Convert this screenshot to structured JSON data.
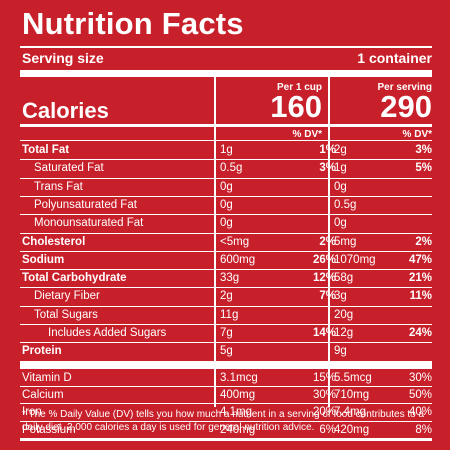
{
  "title": "Nutrition Facts",
  "serving": {
    "label": "Serving size",
    "value": "1 container"
  },
  "calories_label": "Calories",
  "columns": [
    {
      "header": "Per 1 cup",
      "calories": "160",
      "dv_header": "% DV*"
    },
    {
      "header": "Per serving",
      "calories": "290",
      "dv_header": "% DV*"
    }
  ],
  "rows": [
    {
      "name": "Total Fat",
      "bold": true,
      "indent": 0,
      "c1": "1g",
      "d1": "1%",
      "c2": "2g",
      "d2": "3%"
    },
    {
      "name": "Saturated Fat",
      "bold": false,
      "indent": 1,
      "c1": "0.5g",
      "d1": "3%",
      "c2": "1g",
      "d2": "5%"
    },
    {
      "name": "Trans Fat",
      "bold": false,
      "indent": 1,
      "c1": "0g",
      "d1": "",
      "c2": "0g",
      "d2": ""
    },
    {
      "name": "Polyunsaturated Fat",
      "bold": false,
      "indent": 1,
      "c1": "0g",
      "d1": "",
      "c2": "0.5g",
      "d2": ""
    },
    {
      "name": "Monounsaturated Fat",
      "bold": false,
      "indent": 1,
      "c1": "0g",
      "d1": "",
      "c2": "0g",
      "d2": ""
    },
    {
      "name": "Cholesterol",
      "bold": true,
      "indent": 0,
      "c1": "<5mg",
      "d1": "2%",
      "c2": "5mg",
      "d2": "2%"
    },
    {
      "name": "Sodium",
      "bold": true,
      "indent": 0,
      "c1": "600mg",
      "d1": "26%",
      "c2": "1070mg",
      "d2": "47%"
    },
    {
      "name": "Total Carbohydrate",
      "bold": true,
      "indent": 0,
      "c1": "33g",
      "d1": "12%",
      "c2": "58g",
      "d2": "21%"
    },
    {
      "name": "Dietary Fiber",
      "bold": false,
      "indent": 1,
      "c1": "2g",
      "d1": "7%",
      "c2": "3g",
      "d2": "11%"
    },
    {
      "name": "Total Sugars",
      "bold": false,
      "indent": 1,
      "c1": "11g",
      "d1": "",
      "c2": "20g",
      "d2": ""
    },
    {
      "name": "Includes Added Sugars",
      "bold": false,
      "indent": 2,
      "c1": "7g",
      "d1": "14%",
      "c2": "12g",
      "d2": "24%"
    },
    {
      "name": "Protein",
      "bold": true,
      "indent": 0,
      "c1": "5g",
      "d1": "",
      "c2": "9g",
      "d2": ""
    }
  ],
  "vitamins": [
    {
      "name": "Vitamin D",
      "c1": "3.1mcg",
      "d1": "15%",
      "c2": "5.5mcg",
      "d2": "30%"
    },
    {
      "name": "Calcium",
      "c1": "400mg",
      "d1": "30%",
      "c2": "710mg",
      "d2": "50%"
    },
    {
      "name": "Iron",
      "c1": "4.1mg",
      "d1": "20%",
      "c2": "7.4mg",
      "d2": "40%"
    },
    {
      "name": "Potassium",
      "c1": "240mg",
      "d1": "6%",
      "c2": "420mg",
      "d2": "8%"
    }
  ],
  "footnote": "* The % Daily Value (DV) tells you how much a nutrient in a serving of food contributes to a daily diet. 2,000 calories a day is used for general nutrition advice.",
  "colors": {
    "background": "#c8202a",
    "text": "#ffffff"
  }
}
